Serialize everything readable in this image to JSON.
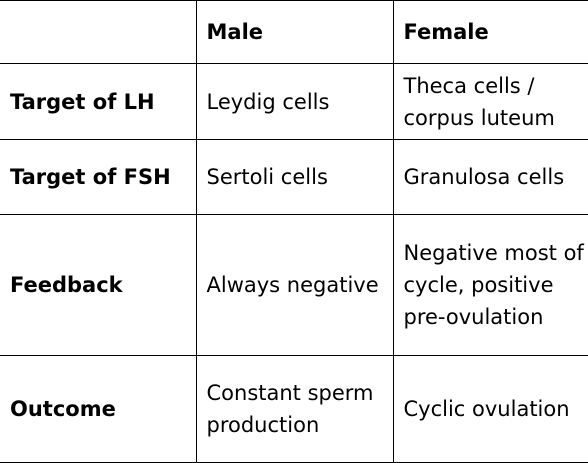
{
  "table": {
    "headers": [
      "",
      "Male",
      "Female"
    ],
    "rows": [
      {
        "label": "Target of LH",
        "male": "Leydig cells",
        "female": "Theca cells / corpus luteum"
      },
      {
        "label": "Target of FSH",
        "male": "Sertoli cells",
        "female": "Granulosa cells"
      },
      {
        "label": "Feedback",
        "male": "Always negative",
        "female": "Negative most of cycle, positive pre-ovulation"
      },
      {
        "label": "Outcome",
        "male": "Constant sperm production",
        "female": "Cyclic ovulation"
      }
    ]
  }
}
